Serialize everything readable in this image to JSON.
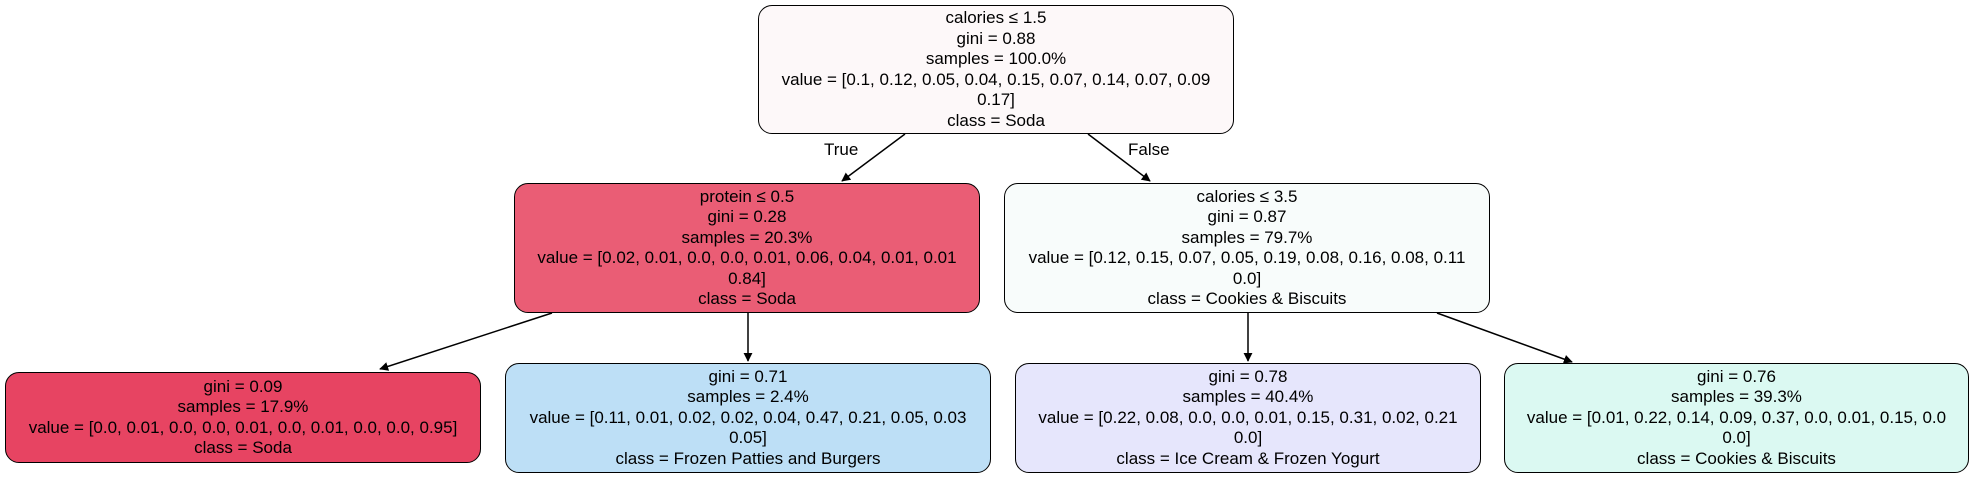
{
  "nodes": {
    "root": {
      "split": "calories ≤ 1.5",
      "gini": "gini = 0.88",
      "samples": "samples = 100.0%",
      "value1": "value = [0.1, 0.12, 0.05, 0.04, 0.15, 0.07, 0.14, 0.07, 0.09",
      "value2": "0.17]",
      "class": "class = Soda",
      "fill": "#fdf8f9"
    },
    "left": {
      "split": "protein ≤ 0.5",
      "gini": "gini = 0.28",
      "samples": "samples = 20.3%",
      "value1": "value = [0.02, 0.01, 0.0, 0.0, 0.01, 0.06, 0.04, 0.01, 0.01",
      "value2": "0.84]",
      "class": "class = Soda",
      "fill": "#ea5d75"
    },
    "right": {
      "split": "calories ≤ 3.5",
      "gini": "gini = 0.87",
      "samples": "samples = 79.7%",
      "value1": "value = [0.12, 0.15, 0.07, 0.05, 0.19, 0.08, 0.16, 0.08, 0.11",
      "value2": "0.0]",
      "class": "class = Cookies & Biscuits",
      "fill": "#f8fcfb"
    },
    "ll": {
      "gini": "gini = 0.09",
      "samples": "samples = 17.9%",
      "value1": "value = [0.0, 0.01, 0.0, 0.0, 0.01, 0.0, 0.01, 0.0, 0.0, 0.95]",
      "class": "class = Soda",
      "fill": "#e74462"
    },
    "lr": {
      "gini": "gini = 0.71",
      "samples": "samples = 2.4%",
      "value1": "value = [0.11, 0.01, 0.02, 0.02, 0.04, 0.47, 0.21, 0.05, 0.03",
      "value2": "0.05]",
      "class": "class = Frozen Patties and Burgers",
      "fill": "#bddff6"
    },
    "rl": {
      "gini": "gini = 0.78",
      "samples": "samples = 40.4%",
      "value1": "value = [0.22, 0.08, 0.0, 0.0, 0.01, 0.15, 0.31, 0.02, 0.21",
      "value2": "0.0]",
      "class": "class = Ice Cream & Frozen Yogurt",
      "fill": "#e6e6fc"
    },
    "rr": {
      "gini": "gini = 0.76",
      "samples": "samples = 39.3%",
      "value1": "value = [0.01, 0.22, 0.14, 0.09, 0.37, 0.0, 0.01, 0.15, 0.0",
      "value2": "0.0]",
      "class": "class = Cookies & Biscuits",
      "fill": "#dbf9f2"
    }
  },
  "edge_labels": {
    "true": "True",
    "false": "False"
  }
}
